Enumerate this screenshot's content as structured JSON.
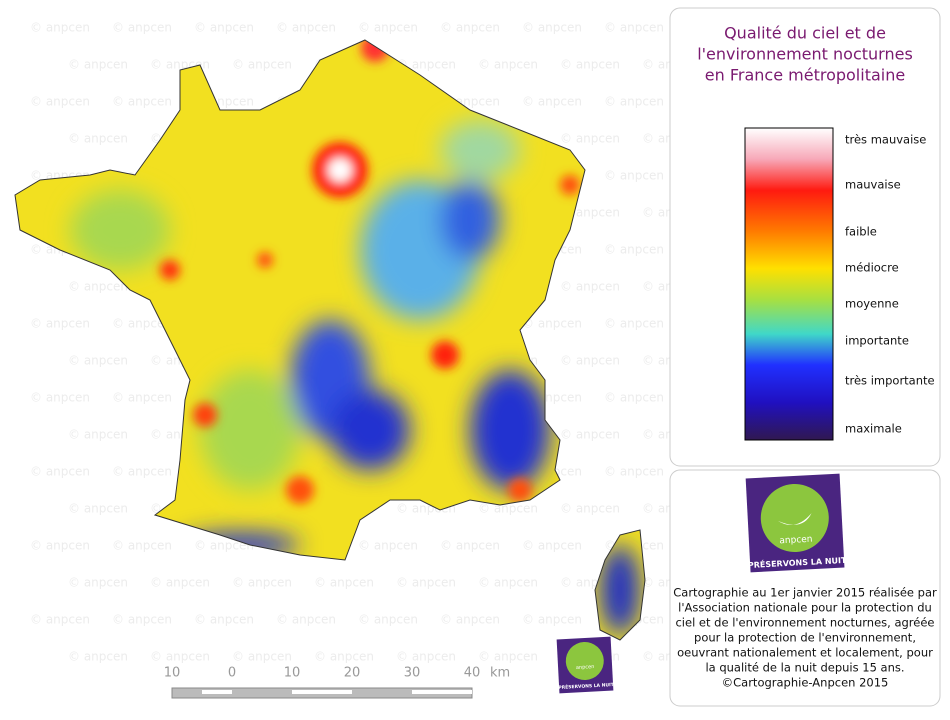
{
  "title": [
    "Qualité du ciel et de",
    "l'environnement nocturnes",
    "en France métropolitaine"
  ],
  "legend": [
    "très mauvaise",
    "mauvaise",
    "faible",
    "médiocre",
    "moyenne",
    "importante",
    "très importante",
    "maximale"
  ],
  "logo": {
    "name": "anpcen",
    "slogan": "PRÉSERVONS LA NUIT"
  },
  "caption": [
    "Cartographie au 1er janvier 2015 réalisée par",
    "l'Association nationale pour la protection du",
    "ciel et de l'environnement nocturnes, agréée",
    "pour la protection de l'environnement,",
    "oeuvrant nationalement et localement, pour",
    "la qualité de la nuit depuis 15 ans.",
    "©Cartographie-Anpcen 2015"
  ],
  "scale": {
    "labels": [
      "10",
      "0",
      "10",
      "20",
      "30",
      "40"
    ],
    "unit": "km"
  },
  "watermark": "© anpcen"
}
